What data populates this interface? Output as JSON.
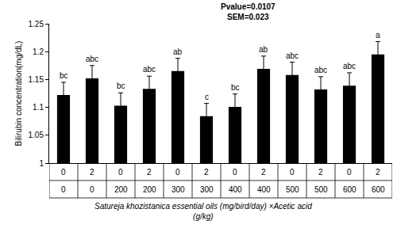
{
  "chart_data": {
    "type": "bar",
    "annotations": [
      "Pvalue=0.0107",
      "SEM=0.023"
    ],
    "y_label": "Bilirubin concentration(mg/dL)",
    "x_label": [
      "Satureja khozistanica essential oils (mg/bird/day) ×Acetic acid",
      "(g/kg)"
    ],
    "categories": [
      [
        "0",
        "0"
      ],
      [
        "2",
        "0"
      ],
      [
        "0",
        "200"
      ],
      [
        "2",
        "200"
      ],
      [
        "0",
        "300"
      ],
      [
        "2",
        "300"
      ],
      [
        "0",
        "400"
      ],
      [
        "2",
        "400"
      ],
      [
        "0",
        "500"
      ],
      [
        "2",
        "500"
      ],
      [
        "0",
        "600"
      ],
      [
        "2",
        "600"
      ]
    ],
    "values": [
      1.122,
      1.152,
      1.103,
      1.133,
      1.165,
      1.084,
      1.101,
      1.169,
      1.158,
      1.132,
      1.139,
      1.195
    ],
    "errors": [
      0.023,
      0.023,
      0.023,
      0.023,
      0.023,
      0.023,
      0.023,
      0.023,
      0.023,
      0.023,
      0.023,
      0.023
    ],
    "letters": [
      "bc",
      "abc",
      "bc",
      "abc",
      "ab",
      "c",
      "bc",
      "ab",
      "abc",
      "abc",
      "abc",
      "a"
    ],
    "color": "#000000",
    "ylim": [
      1,
      1.25
    ],
    "yticks": [
      1,
      1.05,
      1.1,
      1.15,
      1.2,
      1.25
    ],
    "grid": false
  }
}
